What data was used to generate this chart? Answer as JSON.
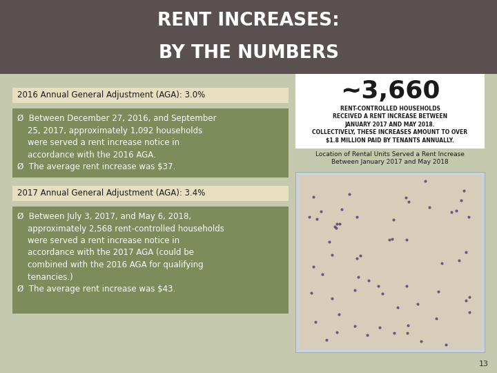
{
  "title_line1": "RENT INCREASES:",
  "title_line2": "BY THE NUMBERS",
  "title_bg_color": "#5a5050",
  "title_text_color": "#ffffff",
  "body_bg_color": "#c5c9ae",
  "header_2016_text": "2016 Annual General Adjustment (AGA): 3.0%",
  "header_2016_bg": "#e8dfc0",
  "header_2017_text": "2017 Annual General Adjustment (AGA): 3.4%",
  "header_2017_bg": "#e8dfc0",
  "box_2016_bg": "#7d8c5a",
  "box_2017_bg": "#7d8c5a",
  "text_color_dark": "#1a1a1a",
  "text_color_white": "#ffffff",
  "page_number": "13",
  "right_white_bg": "#ffffff",
  "big_number": "~3,660",
  "big_number_desc": "RENT-CONTROLLED HOUSEHOLDS\nRECEIVED A RENT INCREASE BETWEEN\nJANUARY 2017 AND MAY 2018.\nCOLLECTIVELY, THESE INCREASES AMOUNT TO OVER\n$1.8 MILLION PAID BY TENANTS ANNUALLY.",
  "map_label": "Location of Rental Units Served a Rent Increase\nBetween January 2017 and May 2018"
}
